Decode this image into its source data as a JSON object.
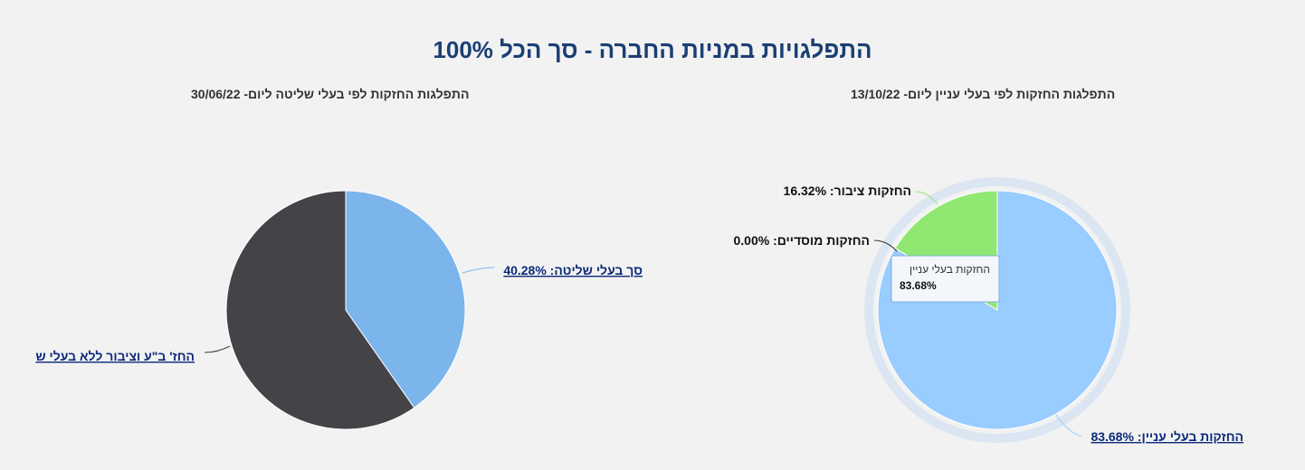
{
  "page": {
    "title": "התפלגויות במניות החברה - סך הכל 100%"
  },
  "chart_data": [
    {
      "type": "pie",
      "title": "התפלגות החזקות לפי בעלי עניין ליום- 13/10/22",
      "series": [
        {
          "name": "החזקות בעלי עניין",
          "value": 83.68,
          "label": "החזקות בעלי עניין: 83.68%",
          "color": "#99ccff"
        },
        {
          "name": "החזקות ציבור",
          "value": 16.32,
          "label": "החזקות ציבור: 16.32%",
          "color": "#90e872"
        },
        {
          "name": "החזקות מוסדיים",
          "value": 0.0,
          "label": "החזקות מוסדיים: 0.00%",
          "color": "#2b2b2b"
        }
      ],
      "tooltip": {
        "name": "החזקות בעלי עניין",
        "value": "83.68%"
      },
      "legend": "none"
    },
    {
      "type": "pie",
      "title": "התפלגות החזקות לפי בעלי שליטה ליום- 30/06/22",
      "series": [
        {
          "name": "סך בעלי שליטה",
          "value": 40.28,
          "label": "סך בעלי שליטה: 40.28%",
          "color": "#7cb5ec"
        },
        {
          "name": "החז' ב\"ע וציבור ללא בעלי ש",
          "value": 59.72,
          "label": "החז' ב\"ע וציבור ללא בעלי ש",
          "color": "#434348"
        }
      ],
      "legend": "none"
    }
  ]
}
